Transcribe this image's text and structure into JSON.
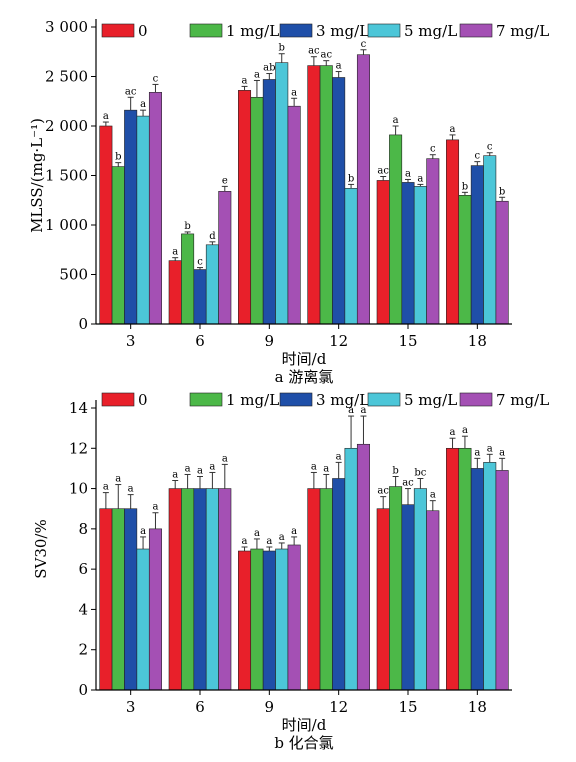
{
  "chart_data": [
    {
      "type": "bar",
      "subtitle": "a 游离氯",
      "xlabel": "时间/d",
      "ylabel": "MLSS/(mg·L⁻¹)",
      "categories": [
        "3",
        "6",
        "9",
        "12",
        "15",
        "18"
      ],
      "ylim": [
        0,
        3000
      ],
      "yticks": [
        0,
        500,
        1000,
        1500,
        2000,
        2500,
        3000
      ],
      "ytick_labels": [
        "0",
        "500",
        "1 000",
        "1 500",
        "2 000",
        "2 500",
        "3 000"
      ],
      "legend_position": "top",
      "series": [
        {
          "name": "0",
          "color": "#e8202a",
          "values": [
            2000,
            640,
            2360,
            2610,
            1450,
            1860
          ],
          "errors": [
            40,
            30,
            40,
            90,
            40,
            50
          ],
          "letters": [
            "a",
            "a",
            "a",
            "ac",
            "ac",
            "a"
          ]
        },
        {
          "name": "1 mg/L",
          "color": "#4cb848",
          "values": [
            1590,
            910,
            2290,
            2610,
            1910,
            1300
          ],
          "errors": [
            40,
            20,
            170,
            50,
            90,
            30
          ],
          "letters": [
            "b",
            "b",
            "a",
            "ac",
            "a",
            "b"
          ]
        },
        {
          "name": "3 mg/L",
          "color": "#1f4fa8",
          "values": [
            2160,
            550,
            2470,
            2490,
            1430,
            1600
          ],
          "errors": [
            130,
            20,
            60,
            60,
            30,
            40
          ],
          "letters": [
            "ac",
            "c",
            "ab",
            "a",
            "a",
            "c"
          ]
        },
        {
          "name": "5 mg/L",
          "color": "#4cc6d8",
          "values": [
            2100,
            800,
            2640,
            1370,
            1390,
            1700
          ],
          "errors": [
            60,
            30,
            90,
            40,
            20,
            30
          ],
          "letters": [
            "a",
            "d",
            "b",
            "b",
            "a",
            "c"
          ]
        },
        {
          "name": "7 mg/L",
          "color": "#a450b4",
          "values": [
            2340,
            1340,
            2200,
            2720,
            1670,
            1240
          ],
          "errors": [
            80,
            50,
            80,
            50,
            40,
            40
          ],
          "letters": [
            "c",
            "e",
            "a",
            "c",
            "c",
            "b"
          ]
        }
      ]
    },
    {
      "type": "bar",
      "subtitle": "b 化合氯",
      "xlabel": "时间/d",
      "ylabel": "SV30/%",
      "categories": [
        "3",
        "6",
        "9",
        "12",
        "15",
        "18"
      ],
      "ylim": [
        0,
        14
      ],
      "yticks": [
        0,
        2,
        4,
        6,
        8,
        10,
        12,
        14
      ],
      "ytick_labels": [
        "0",
        "2",
        "4",
        "6",
        "8",
        "10",
        "12",
        "14"
      ],
      "legend_position": "top",
      "series": [
        {
          "name": "0",
          "color": "#e8202a",
          "values": [
            9,
            10,
            6.9,
            10,
            9,
            12
          ],
          "errors": [
            0.8,
            0.4,
            0.2,
            0.8,
            0.6,
            0.5
          ],
          "letters": [
            "a",
            "a",
            "a",
            "a",
            "ac",
            "a"
          ]
        },
        {
          "name": "1 mg/L",
          "color": "#4cb848",
          "values": [
            9,
            10,
            7,
            10,
            10.1,
            12
          ],
          "errors": [
            1.2,
            0.7,
            0.5,
            0.7,
            0.5,
            0.6
          ],
          "letters": [
            "a",
            "a",
            "a",
            "a",
            "b",
            "a"
          ]
        },
        {
          "name": "3 mg/L",
          "color": "#1f4fa8",
          "values": [
            9,
            10,
            6.9,
            10.5,
            9.2,
            11
          ],
          "errors": [
            0.7,
            0.6,
            0.2,
            0.8,
            0.8,
            0.5
          ],
          "letters": [
            "a",
            "a",
            "a",
            "a",
            "ac",
            "a"
          ]
        },
        {
          "name": "5 mg/L",
          "color": "#4cc6d8",
          "values": [
            7,
            10,
            7,
            12,
            10,
            11.3
          ],
          "errors": [
            0.6,
            0.8,
            0.3,
            1.6,
            0.5,
            0.4
          ],
          "letters": [
            "a",
            "a",
            "a",
            "a",
            "bc",
            "a"
          ]
        },
        {
          "name": "7 mg/L",
          "color": "#a450b4",
          "values": [
            8,
            10,
            7.2,
            12.2,
            8.9,
            10.9
          ],
          "errors": [
            0.8,
            1.2,
            0.4,
            1.4,
            0.5,
            0.6
          ],
          "letters": [
            "a",
            "a",
            "a",
            "a",
            "a",
            "a"
          ]
        }
      ]
    }
  ]
}
